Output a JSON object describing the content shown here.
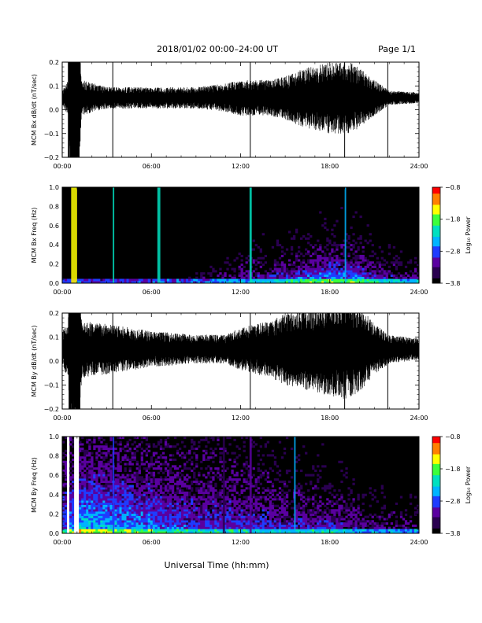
{
  "header": {
    "title": "2018/01/02  00:00–24:00 UT",
    "page": "Page 1/1"
  },
  "xlabel": "Universal Time (hh:mm)",
  "colors": {
    "trace": "#000000",
    "spectrogram_background": "#000000",
    "colormap": [
      "#000000",
      "#2a0050",
      "#5a00a0",
      "#1f3cff",
      "#00b4ff",
      "#00e0c0",
      "#3cff3c",
      "#ffff00",
      "#ff8000",
      "#ff0000"
    ]
  },
  "chart_data": [
    {
      "type": "line",
      "ylabel": "MCM Bx dB/dt (nT/sec)",
      "xlim": [
        0,
        24
      ],
      "ylim": [
        -0.2,
        0.2
      ],
      "xticks": [
        "00:00",
        "06:00",
        "12:00",
        "18:00",
        "24:00"
      ],
      "yticks": [
        "−0.2",
        "−0.1",
        "0.0",
        "0.1",
        "0.2"
      ],
      "ytick_values": [
        -0.2,
        -0.1,
        0.0,
        0.1,
        0.2
      ],
      "baseline": 0.05,
      "amplitude_profile": [
        [
          0,
          0.02
        ],
        [
          0.4,
          0.05
        ],
        [
          0.6,
          0.3
        ],
        [
          1.0,
          0.3
        ],
        [
          1.3,
          0.05
        ],
        [
          3,
          0.03
        ],
        [
          6,
          0.03
        ],
        [
          9,
          0.03
        ],
        [
          11,
          0.04
        ],
        [
          12,
          0.05
        ],
        [
          14,
          0.05
        ],
        [
          15,
          0.06
        ],
        [
          16,
          0.08
        ],
        [
          18,
          0.1
        ],
        [
          19.5,
          0.1
        ],
        [
          21,
          0.05
        ],
        [
          22,
          0.02
        ],
        [
          24,
          0.015
        ]
      ],
      "spikes": [
        {
          "x": 0.45,
          "ymin": -0.2,
          "ymax": 0.2
        },
        {
          "x": 0.65,
          "ymin": -0.2,
          "ymax": 0.2
        },
        {
          "x": 0.9,
          "ymin": -0.2,
          "ymax": 0.2
        },
        {
          "x": 1.1,
          "ymin": -0.2,
          "ymax": 0.2
        },
        {
          "x": 3.4,
          "ymin": -0.2,
          "ymax": 0.2
        },
        {
          "x": 12.65,
          "ymin": -0.2,
          "ymax": 0.2
        },
        {
          "x": 19.0,
          "ymin": -0.2,
          "ymax": 0.2
        },
        {
          "x": 21.9,
          "ymin": -0.2,
          "ymax": 0.2
        }
      ]
    },
    {
      "type": "heatmap",
      "ylabel": "MCM Bx Freq (Hz)",
      "xlim": [
        0,
        24
      ],
      "ylim": [
        0,
        1
      ],
      "xticks": [
        "00:00",
        "06:00",
        "12:00",
        "18:00",
        "24:00"
      ],
      "yticks": [
        "0.0",
        "0.2",
        "0.4",
        "0.6",
        "0.8",
        "1.0"
      ],
      "ytick_values": [
        0,
        0.2,
        0.4,
        0.6,
        0.8,
        1.0
      ],
      "colorbar": {
        "label": "Log₁₀ Power",
        "ticks": [
          "−3.8",
          "−2.8",
          "−1.8",
          "−0.8"
        ],
        "tick_values": [
          -3.8,
          -2.8,
          -1.8,
          -0.8
        ]
      },
      "levels": [
        [
          0,
          0.05
        ],
        [
          6,
          0.05
        ],
        [
          10,
          0.15
        ],
        [
          12,
          0.25
        ],
        [
          15,
          0.35
        ],
        [
          18,
          0.5
        ],
        [
          20,
          0.45
        ],
        [
          22,
          0.3
        ],
        [
          24,
          0.25
        ]
      ],
      "extent_hz": [
        [
          0,
          0.05
        ],
        [
          6,
          0.05
        ],
        [
          10,
          0.15
        ],
        [
          12,
          0.25
        ],
        [
          15,
          0.3
        ],
        [
          18,
          0.35
        ],
        [
          20,
          0.35
        ],
        [
          22,
          0.25
        ],
        [
          24,
          0.2
        ]
      ],
      "bright_bands": [
        {
          "x0": 0.6,
          "x1": 1.0,
          "level": 0.75
        },
        {
          "x0": 3.4,
          "x1": 3.5,
          "level": 0.5
        },
        {
          "x0": 6.4,
          "x1": 6.6,
          "level": 0.5
        },
        {
          "x0": 12.6,
          "x1": 12.75,
          "level": 0.6
        },
        {
          "x0": 19.0,
          "x1": 19.1,
          "level": 0.45
        }
      ]
    },
    {
      "type": "line",
      "ylabel": "MCM By dB/dt (nT/sec)",
      "xlim": [
        0,
        24
      ],
      "ylim": [
        -0.2,
        0.2
      ],
      "xticks": [
        "00:00",
        "06:00",
        "12:00",
        "18:00",
        "24:00"
      ],
      "yticks": [
        "−0.2",
        "−0.1",
        "0.0",
        "0.1",
        "0.2"
      ],
      "ytick_values": [
        -0.2,
        -0.1,
        0.0,
        0.1,
        0.2
      ],
      "baseline": 0.05,
      "amplitude_profile": [
        [
          0,
          0.05
        ],
        [
          0.4,
          0.08
        ],
        [
          0.6,
          0.3
        ],
        [
          1.1,
          0.3
        ],
        [
          1.3,
          0.08
        ],
        [
          3,
          0.07
        ],
        [
          6,
          0.05
        ],
        [
          9,
          0.04
        ],
        [
          11,
          0.04
        ],
        [
          12,
          0.06
        ],
        [
          14,
          0.08
        ],
        [
          15,
          0.1
        ],
        [
          17,
          0.12
        ],
        [
          19,
          0.14
        ],
        [
          20,
          0.12
        ],
        [
          21,
          0.07
        ],
        [
          22,
          0.04
        ],
        [
          24,
          0.03
        ]
      ],
      "spikes": [
        {
          "x": 0.5,
          "ymin": -0.2,
          "ymax": 0.2
        },
        {
          "x": 0.7,
          "ymin": -0.2,
          "ymax": 0.2
        },
        {
          "x": 0.95,
          "ymin": -0.2,
          "ymax": 0.2
        },
        {
          "x": 1.15,
          "ymin": -0.2,
          "ymax": 0.2
        },
        {
          "x": 3.4,
          "ymin": -0.2,
          "ymax": 0.2
        },
        {
          "x": 12.65,
          "ymin": -0.2,
          "ymax": 0.2
        },
        {
          "x": 19.0,
          "ymin": -0.2,
          "ymax": 0.2
        },
        {
          "x": 21.9,
          "ymin": -0.2,
          "ymax": 0.2
        }
      ]
    },
    {
      "type": "heatmap",
      "ylabel": "MCM By Freq (Hz)",
      "xlim": [
        0,
        24
      ],
      "ylim": [
        0,
        1
      ],
      "xticks": [
        "00:00",
        "06:00",
        "12:00",
        "18:00",
        "24:00"
      ],
      "yticks": [
        "0.0",
        "0.2",
        "0.4",
        "0.6",
        "0.8",
        "1.0"
      ],
      "ytick_values": [
        0,
        0.2,
        0.4,
        0.6,
        0.8,
        1.0
      ],
      "colorbar": {
        "label": "Log₁₀ Power",
        "ticks": [
          "−3.8",
          "−2.8",
          "−1.8",
          "−0.8"
        ],
        "tick_values": [
          -3.8,
          -2.8,
          -1.8,
          -0.8
        ]
      },
      "levels": [
        [
          0,
          0.35
        ],
        [
          1.3,
          0.55
        ],
        [
          3,
          0.5
        ],
        [
          6,
          0.4
        ],
        [
          9,
          0.3
        ],
        [
          12,
          0.3
        ],
        [
          15,
          0.28
        ],
        [
          18,
          0.3
        ],
        [
          21,
          0.2
        ],
        [
          24,
          0.18
        ]
      ],
      "extent_hz": [
        [
          0,
          1.0
        ],
        [
          1.3,
          1.0
        ],
        [
          4,
          1.0
        ],
        [
          8,
          1.0
        ],
        [
          11,
          1.0
        ],
        [
          13,
          0.8
        ],
        [
          15,
          0.65
        ],
        [
          17,
          0.55
        ],
        [
          19,
          0.45
        ],
        [
          21,
          0.35
        ],
        [
          24,
          0.3
        ]
      ],
      "gaps": [
        {
          "x0": 0.25,
          "x1": 0.55
        },
        {
          "x0": 0.8,
          "x1": 1.05
        }
      ],
      "bright_bands": [
        {
          "x0": 3.4,
          "x1": 3.5,
          "level": 0.35
        },
        {
          "x0": 10.8,
          "x1": 10.95,
          "level": 0.1
        },
        {
          "x0": 12.6,
          "x1": 12.75,
          "level": 0.2
        },
        {
          "x0": 15.6,
          "x1": 15.7,
          "level": 0.45
        }
      ]
    }
  ]
}
